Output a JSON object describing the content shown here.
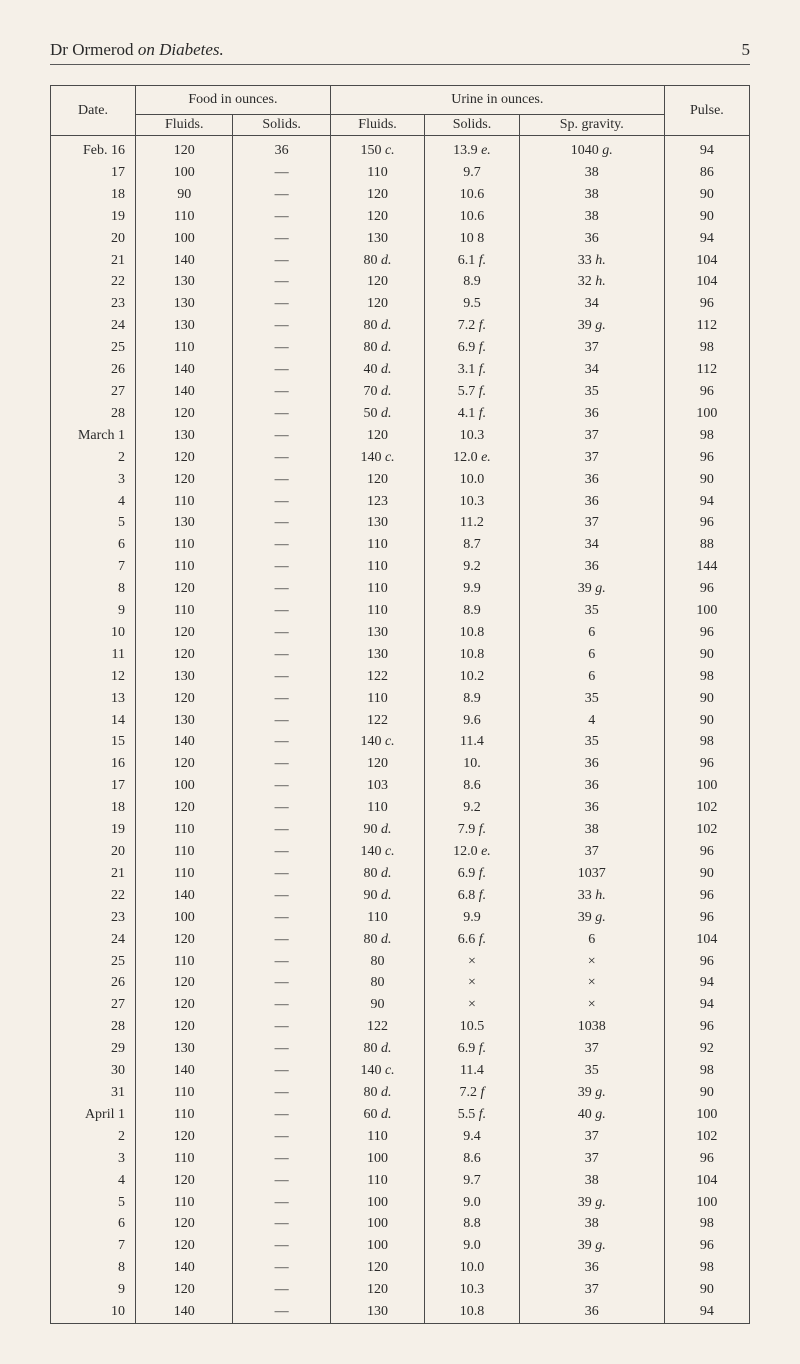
{
  "header": {
    "runningTitle": {
      "author": "Dr Ormerod",
      "on": "on Diabetes."
    },
    "pageNumber": "5"
  },
  "table": {
    "headers": {
      "date": "Date.",
      "foodGroup": "Food in ounces.",
      "foodFluids": "Fluids.",
      "foodSolids": "Solids.",
      "urineGroup": "Urine in ounces.",
      "urineFluids": "Fluids.",
      "urineSolids": "Solids.",
      "spGravity": "Sp. gravity.",
      "pulse": "Pulse."
    },
    "rows": [
      {
        "date": "Feb. 16",
        "ff": "120",
        "fs": "36",
        "uf": "150",
        "ufSuf": "c.",
        "us": "13.9",
        "usSuf": "e.",
        "sp": "1040",
        "spSuf": "g.",
        "p": "94"
      },
      {
        "date": "17",
        "ff": "100",
        "fs": "—",
        "uf": "110",
        "ufSuf": "",
        "us": "9.7",
        "usSuf": "",
        "sp": "38",
        "spSuf": "",
        "p": "86"
      },
      {
        "date": "18",
        "ff": "90",
        "fs": "—",
        "uf": "120",
        "ufSuf": "",
        "us": "10.6",
        "usSuf": "",
        "sp": "38",
        "spSuf": "",
        "p": "90"
      },
      {
        "date": "19",
        "ff": "110",
        "fs": "—",
        "uf": "120",
        "ufSuf": "",
        "us": "10.6",
        "usSuf": "",
        "sp": "38",
        "spSuf": "",
        "p": "90"
      },
      {
        "date": "20",
        "ff": "100",
        "fs": "—",
        "uf": "130",
        "ufSuf": "",
        "us": "10 8",
        "usSuf": "",
        "sp": "36",
        "spSuf": "",
        "p": "94"
      },
      {
        "date": "21",
        "ff": "140",
        "fs": "—",
        "uf": "80",
        "ufSuf": "d.",
        "us": "6.1",
        "usSuf": "f.",
        "sp": "33",
        "spSuf": "h.",
        "p": "104"
      },
      {
        "date": "22",
        "ff": "130",
        "fs": "—",
        "uf": "120",
        "ufSuf": "",
        "us": "8.9",
        "usSuf": "",
        "sp": "32",
        "spSuf": "h.",
        "p": "104"
      },
      {
        "date": "23",
        "ff": "130",
        "fs": "—",
        "uf": "120",
        "ufSuf": "",
        "us": "9.5",
        "usSuf": "",
        "sp": "34",
        "spSuf": "",
        "p": "96"
      },
      {
        "date": "24",
        "ff": "130",
        "fs": "—",
        "uf": "80",
        "ufSuf": "d.",
        "us": "7.2",
        "usSuf": "f.",
        "sp": "39",
        "spSuf": "g.",
        "p": "112"
      },
      {
        "date": "25",
        "ff": "110",
        "fs": "—",
        "uf": "80",
        "ufSuf": "d.",
        "us": "6.9",
        "usSuf": "f.",
        "sp": "37",
        "spSuf": "",
        "p": "98"
      },
      {
        "date": "26",
        "ff": "140",
        "fs": "—",
        "uf": "40",
        "ufSuf": "d.",
        "us": "3.1",
        "usSuf": "f.",
        "sp": "34",
        "spSuf": "",
        "p": "112"
      },
      {
        "date": "27",
        "ff": "140",
        "fs": "—",
        "uf": "70",
        "ufSuf": "d.",
        "us": "5.7",
        "usSuf": "f.",
        "sp": "35",
        "spSuf": "",
        "p": "96"
      },
      {
        "date": "28",
        "ff": "120",
        "fs": "—",
        "uf": "50",
        "ufSuf": "d.",
        "us": "4.1",
        "usSuf": "f.",
        "sp": "36",
        "spSuf": "",
        "p": "100"
      },
      {
        "date": "March 1",
        "ff": "130",
        "fs": "—",
        "uf": "120",
        "ufSuf": "",
        "us": "10.3",
        "usSuf": "",
        "sp": "37",
        "spSuf": "",
        "p": "98"
      },
      {
        "date": "2",
        "ff": "120",
        "fs": "—",
        "uf": "140",
        "ufSuf": "c.",
        "us": "12.0",
        "usSuf": "e.",
        "sp": "37",
        "spSuf": "",
        "p": "96"
      },
      {
        "date": "3",
        "ff": "120",
        "fs": "—",
        "uf": "120",
        "ufSuf": "",
        "us": "10.0",
        "usSuf": "",
        "sp": "36",
        "spSuf": "",
        "p": "90"
      },
      {
        "date": "4",
        "ff": "110",
        "fs": "—",
        "uf": "123",
        "ufSuf": "",
        "us": "10.3",
        "usSuf": "",
        "sp": "36",
        "spSuf": "",
        "p": "94"
      },
      {
        "date": "5",
        "ff": "130",
        "fs": "—",
        "uf": "130",
        "ufSuf": "",
        "us": "11.2",
        "usSuf": "",
        "sp": "37",
        "spSuf": "",
        "p": "96"
      },
      {
        "date": "6",
        "ff": "110",
        "fs": "—",
        "uf": "110",
        "ufSuf": "",
        "us": "8.7",
        "usSuf": "",
        "sp": "34",
        "spSuf": "",
        "p": "88"
      },
      {
        "date": "7",
        "ff": "110",
        "fs": "—",
        "uf": "110",
        "ufSuf": "",
        "us": "9.2",
        "usSuf": "",
        "sp": "36",
        "spSuf": "",
        "p": "144"
      },
      {
        "date": "8",
        "ff": "120",
        "fs": "—",
        "uf": "110",
        "ufSuf": "",
        "us": "9.9",
        "usSuf": "",
        "sp": "39",
        "spSuf": "g.",
        "p": "96"
      },
      {
        "date": "9",
        "ff": "110",
        "fs": "—",
        "uf": "110",
        "ufSuf": "",
        "us": "8.9",
        "usSuf": "",
        "sp": "35",
        "spSuf": "",
        "p": "100"
      },
      {
        "date": "10",
        "ff": "120",
        "fs": "—",
        "uf": "130",
        "ufSuf": "",
        "us": "10.8",
        "usSuf": "",
        "sp": "6",
        "spSuf": "",
        "p": "96"
      },
      {
        "date": "11",
        "ff": "120",
        "fs": "—",
        "uf": "130",
        "ufSuf": "",
        "us": "10.8",
        "usSuf": "",
        "sp": "6",
        "spSuf": "",
        "p": "90"
      },
      {
        "date": "12",
        "ff": "130",
        "fs": "—",
        "uf": "122",
        "ufSuf": "",
        "us": "10.2",
        "usSuf": "",
        "sp": "6",
        "spSuf": "",
        "p": "98"
      },
      {
        "date": "13",
        "ff": "120",
        "fs": "—",
        "uf": "110",
        "ufSuf": "",
        "us": "8.9",
        "usSuf": "",
        "sp": "35",
        "spSuf": "",
        "p": "90"
      },
      {
        "date": "14",
        "ff": "130",
        "fs": "—",
        "uf": "122",
        "ufSuf": "",
        "us": "9.6",
        "usSuf": "",
        "sp": "4",
        "spSuf": "",
        "p": "90"
      },
      {
        "date": "15",
        "ff": "140",
        "fs": "—",
        "uf": "140",
        "ufSuf": "c.",
        "us": "11.4",
        "usSuf": "",
        "sp": "35",
        "spSuf": "",
        "p": "98"
      },
      {
        "date": "16",
        "ff": "120",
        "fs": "—",
        "uf": "120",
        "ufSuf": "",
        "us": "10.",
        "usSuf": "",
        "sp": "36",
        "spSuf": "",
        "p": "96"
      },
      {
        "date": "17",
        "ff": "100",
        "fs": "—",
        "uf": "103",
        "ufSuf": "",
        "us": "8.6",
        "usSuf": "",
        "sp": "36",
        "spSuf": "",
        "p": "100"
      },
      {
        "date": "18",
        "ff": "120",
        "fs": "—",
        "uf": "110",
        "ufSuf": "",
        "us": "9.2",
        "usSuf": "",
        "sp": "36",
        "spSuf": "",
        "p": "102"
      },
      {
        "date": "19",
        "ff": "110",
        "fs": "—",
        "uf": "90",
        "ufSuf": "d.",
        "us": "7.9",
        "usSuf": "f.",
        "sp": "38",
        "spSuf": "",
        "p": "102"
      },
      {
        "date": "20",
        "ff": "110",
        "fs": "—",
        "uf": "140",
        "ufSuf": "c.",
        "us": "12.0",
        "usSuf": "e.",
        "sp": "37",
        "spSuf": "",
        "p": "96"
      },
      {
        "date": "21",
        "ff": "110",
        "fs": "—",
        "uf": "80",
        "ufSuf": "d.",
        "us": "6.9",
        "usSuf": "f.",
        "sp": "1037",
        "spSuf": "",
        "p": "90"
      },
      {
        "date": "22",
        "ff": "140",
        "fs": "—",
        "uf": "90",
        "ufSuf": "d.",
        "us": "6.8",
        "usSuf": "f.",
        "sp": "33",
        "spSuf": "h.",
        "p": "96"
      },
      {
        "date": "23",
        "ff": "100",
        "fs": "—",
        "uf": "110",
        "ufSuf": "",
        "us": "9.9",
        "usSuf": "",
        "sp": "39",
        "spSuf": "g.",
        "p": "96"
      },
      {
        "date": "24",
        "ff": "120",
        "fs": "—",
        "uf": "80",
        "ufSuf": "d.",
        "us": "6.6",
        "usSuf": "f.",
        "sp": "6",
        "spSuf": "",
        "p": "104"
      },
      {
        "date": "25",
        "ff": "110",
        "fs": "—",
        "uf": "80",
        "ufSuf": "",
        "us": "×",
        "usSuf": "",
        "sp": "×",
        "spSuf": "",
        "p": "96"
      },
      {
        "date": "26",
        "ff": "120",
        "fs": "—",
        "uf": "80",
        "ufSuf": "",
        "us": "×",
        "usSuf": "",
        "sp": "×",
        "spSuf": "",
        "p": "94"
      },
      {
        "date": "27",
        "ff": "120",
        "fs": "—",
        "uf": "90",
        "ufSuf": "",
        "us": "×",
        "usSuf": "",
        "sp": "×",
        "spSuf": "",
        "p": "94"
      },
      {
        "date": "28",
        "ff": "120",
        "fs": "—",
        "uf": "122",
        "ufSuf": "",
        "us": "10.5",
        "usSuf": "",
        "sp": "1038",
        "spSuf": "",
        "p": "96"
      },
      {
        "date": "29",
        "ff": "130",
        "fs": "—",
        "uf": "80",
        "ufSuf": "d.",
        "us": "6.9",
        "usSuf": "f.",
        "sp": "37",
        "spSuf": "",
        "p": "92"
      },
      {
        "date": "30",
        "ff": "140",
        "fs": "—",
        "uf": "140",
        "ufSuf": "c.",
        "us": "11.4",
        "usSuf": "",
        "sp": "35",
        "spSuf": "",
        "p": "98"
      },
      {
        "date": "31",
        "ff": "110",
        "fs": "—",
        "uf": "80",
        "ufSuf": "d.",
        "us": "7.2",
        "usSuf": "f",
        "sp": "39",
        "spSuf": "g.",
        "p": "90"
      },
      {
        "date": "April 1",
        "ff": "110",
        "fs": "—",
        "uf": "60",
        "ufSuf": "d.",
        "us": "5.5",
        "usSuf": "f.",
        "sp": "40",
        "spSuf": "g.",
        "p": "100"
      },
      {
        "date": "2",
        "ff": "120",
        "fs": "—",
        "uf": "110",
        "ufSuf": "",
        "us": "9.4",
        "usSuf": "",
        "sp": "37",
        "spSuf": "",
        "p": "102"
      },
      {
        "date": "3",
        "ff": "110",
        "fs": "—",
        "uf": "100",
        "ufSuf": "",
        "us": "8.6",
        "usSuf": "",
        "sp": "37",
        "spSuf": "",
        "p": "96"
      },
      {
        "date": "4",
        "ff": "120",
        "fs": "—",
        "uf": "110",
        "ufSuf": "",
        "us": "9.7",
        "usSuf": "",
        "sp": "38",
        "spSuf": "",
        "p": "104"
      },
      {
        "date": "5",
        "ff": "110",
        "fs": "—",
        "uf": "100",
        "ufSuf": "",
        "us": "9.0",
        "usSuf": "",
        "sp": "39",
        "spSuf": "g.",
        "p": "100"
      },
      {
        "date": "6",
        "ff": "120",
        "fs": "—",
        "uf": "100",
        "ufSuf": "",
        "us": "8.8",
        "usSuf": "",
        "sp": "38",
        "spSuf": "",
        "p": "98"
      },
      {
        "date": "7",
        "ff": "120",
        "fs": "—",
        "uf": "100",
        "ufSuf": "",
        "us": "9.0",
        "usSuf": "",
        "sp": "39",
        "spSuf": "g.",
        "p": "96"
      },
      {
        "date": "8",
        "ff": "140",
        "fs": "—",
        "uf": "120",
        "ufSuf": "",
        "us": "10.0",
        "usSuf": "",
        "sp": "36",
        "spSuf": "",
        "p": "98"
      },
      {
        "date": "9",
        "ff": "120",
        "fs": "—",
        "uf": "120",
        "ufSuf": "",
        "us": "10.3",
        "usSuf": "",
        "sp": "37",
        "spSuf": "",
        "p": "90"
      },
      {
        "date": "10",
        "ff": "140",
        "fs": "—",
        "uf": "130",
        "ufSuf": "",
        "us": "10.8",
        "usSuf": "",
        "sp": "36",
        "spSuf": "",
        "p": "94"
      }
    ]
  }
}
